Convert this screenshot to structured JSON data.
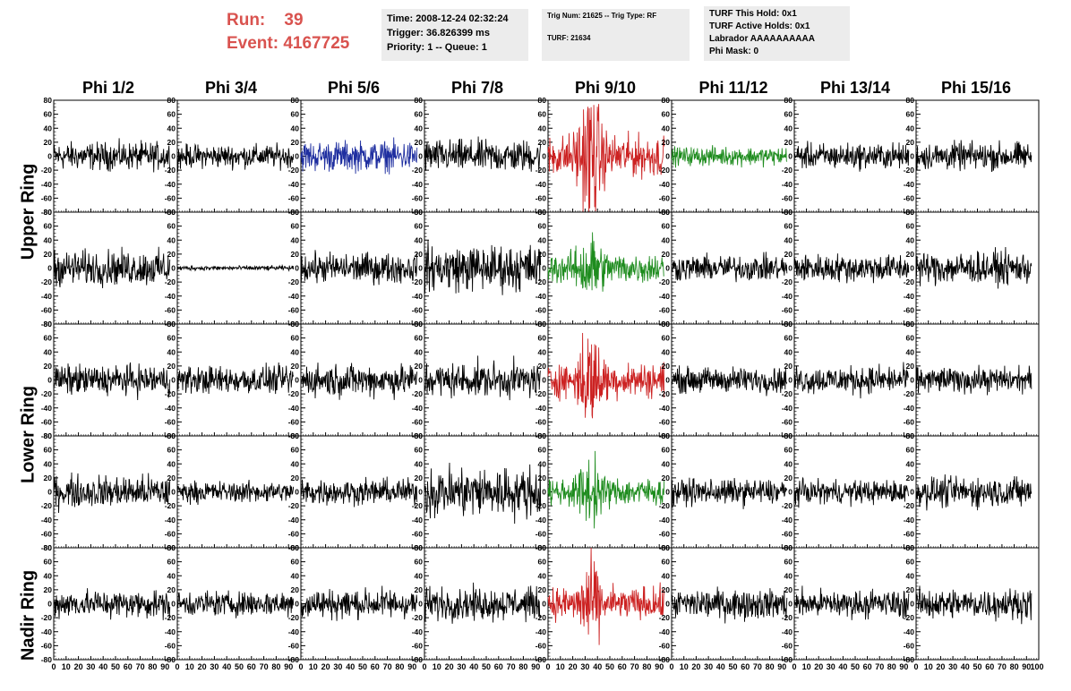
{
  "header": {
    "run_label": "Run:",
    "run_value": "39",
    "event_label": "Event:",
    "event_value": "4167725",
    "time_box": [
      "Time: 2008-12-24 02:32:24",
      "Trigger: 36.826399 ms",
      "Priority: 1 -- Queue: 1"
    ],
    "trig_box": [
      "Trig Num: 21625 -- Trig Type: RF",
      "TURF: 21634"
    ],
    "turf_box": [
      "TURF This Hold: 0x1",
      "TURF Active Holds: 0x1",
      "Labrador AAAAAAAAAA",
      "Phi Mask: 0"
    ]
  },
  "chart_data": {
    "type": "line",
    "columns": [
      "Phi 1/2",
      "Phi 3/4",
      "Phi 5/6",
      "Phi 7/8",
      "Phi 9/10",
      "Phi 11/12",
      "Phi 13/14",
      "Phi 15/16"
    ],
    "rows": [
      "Upper Ring",
      "Upper Ring",
      "Lower Ring",
      "Lower Ring",
      "Nadir Ring"
    ],
    "row_groups": [
      {
        "label": "Upper Ring",
        "rows": [
          0,
          1
        ]
      },
      {
        "label": "Lower Ring",
        "rows": [
          2,
          3
        ]
      },
      {
        "label": "Nadir Ring",
        "rows": [
          4
        ]
      }
    ],
    "ylim": [
      -80,
      80
    ],
    "yticks": [
      -80,
      -60,
      -40,
      -20,
      0,
      20,
      40,
      60,
      80
    ],
    "xlim": [
      0,
      100
    ],
    "xticks": [
      0,
      10,
      20,
      30,
      40,
      50,
      60,
      70,
      80,
      90,
      100
    ],
    "x_tick_labels_per_panel": [
      "0",
      "10",
      "20",
      "30",
      "40",
      "50",
      "60",
      "70",
      "80",
      "90"
    ],
    "last_x_tick_label": "100",
    "samples_per_trace": 260,
    "trace_x_end": 94,
    "colors": {
      "default": "#000000",
      "red": "#cc2222",
      "green": "#1e8c1e",
      "blue": "#1f2fa0"
    },
    "panels": [
      [
        {
          "color": "default",
          "amp": 12,
          "pulse": 0
        },
        {
          "color": "default",
          "amp": 10,
          "pulse": 0
        },
        {
          "color": "blue",
          "amp": 13,
          "pulse": 0
        },
        {
          "color": "default",
          "amp": 14,
          "pulse": 0
        },
        {
          "color": "red",
          "amp": 18,
          "pulse": 45
        },
        {
          "color": "green",
          "amp": 8,
          "pulse": 0
        },
        {
          "color": "default",
          "amp": 11,
          "pulse": 0
        },
        {
          "color": "default",
          "amp": 12,
          "pulse": 0
        }
      ],
      [
        {
          "color": "default",
          "amp": 15,
          "pulse": 0
        },
        {
          "color": "default",
          "amp": 2,
          "pulse": 0
        },
        {
          "color": "default",
          "amp": 13,
          "pulse": 0
        },
        {
          "color": "default",
          "amp": 20,
          "pulse": 0
        },
        {
          "color": "green",
          "amp": 13,
          "pulse": 22
        },
        {
          "color": "default",
          "amp": 11,
          "pulse": 0
        },
        {
          "color": "default",
          "amp": 12,
          "pulse": 0
        },
        {
          "color": "default",
          "amp": 14,
          "pulse": 0
        }
      ],
      [
        {
          "color": "default",
          "amp": 13,
          "pulse": 0
        },
        {
          "color": "default",
          "amp": 12,
          "pulse": 0
        },
        {
          "color": "default",
          "amp": 14,
          "pulse": 0
        },
        {
          "color": "default",
          "amp": 15,
          "pulse": 0
        },
        {
          "color": "red",
          "amp": 15,
          "pulse": 32
        },
        {
          "color": "default",
          "amp": 11,
          "pulse": 0
        },
        {
          "color": "default",
          "amp": 12,
          "pulse": 0
        },
        {
          "color": "default",
          "amp": 11,
          "pulse": 0
        }
      ],
      [
        {
          "color": "default",
          "amp": 14,
          "pulse": 0
        },
        {
          "color": "default",
          "amp": 9,
          "pulse": 0
        },
        {
          "color": "default",
          "amp": 11,
          "pulse": 0
        },
        {
          "color": "default",
          "amp": 22,
          "pulse": 0
        },
        {
          "color": "green",
          "amp": 12,
          "pulse": 20
        },
        {
          "color": "default",
          "amp": 11,
          "pulse": 0
        },
        {
          "color": "default",
          "amp": 10,
          "pulse": 0
        },
        {
          "color": "default",
          "amp": 13,
          "pulse": 0
        }
      ],
      [
        {
          "color": "default",
          "amp": 12,
          "pulse": 0
        },
        {
          "color": "default",
          "amp": 11,
          "pulse": 0
        },
        {
          "color": "default",
          "amp": 13,
          "pulse": 0
        },
        {
          "color": "default",
          "amp": 14,
          "pulse": 0
        },
        {
          "color": "red",
          "amp": 14,
          "pulse": 25
        },
        {
          "color": "default",
          "amp": 13,
          "pulse": 0
        },
        {
          "color": "default",
          "amp": 12,
          "pulse": 0
        },
        {
          "color": "default",
          "amp": 13,
          "pulse": 0
        }
      ]
    ]
  }
}
